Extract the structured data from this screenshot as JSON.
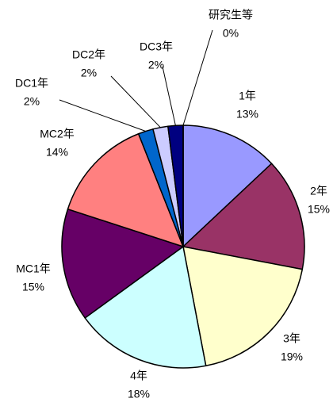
{
  "chart_data": {
    "type": "pie",
    "categories": [
      "1年",
      "2年",
      "3年",
      "4年",
      "MC1年",
      "MC2年",
      "DC1年",
      "DC2年",
      "DC3年",
      "研究生等"
    ],
    "values": [
      13,
      15,
      19,
      18,
      15,
      14,
      2,
      2,
      2,
      0
    ],
    "value_labels": [
      "13%",
      "15%",
      "19%",
      "18%",
      "15%",
      "14%",
      "2%",
      "2%",
      "2%",
      "0%"
    ],
    "colors": [
      "#9999ff",
      "#993366",
      "#ffffcc",
      "#ccffff",
      "#660066",
      "#ff8080",
      "#0066cc",
      "#ccccff",
      "#000080",
      "#000000"
    ]
  }
}
